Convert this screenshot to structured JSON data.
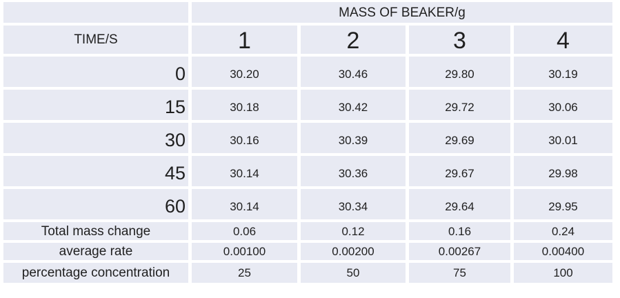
{
  "colors": {
    "cell_bg": "#e8eaf3",
    "gap": "#ffffff",
    "text": "#1f1f1f"
  },
  "chart_data": {
    "type": "table",
    "title": "MASS OF BEAKER/g",
    "row_axis_label": "TIME/S",
    "columns": [
      "1",
      "2",
      "3",
      "4"
    ],
    "time_rows": [
      {
        "time": "0",
        "masses": [
          "30.20",
          "30.46",
          "29.80",
          "30.19"
        ]
      },
      {
        "time": "15",
        "masses": [
          "30.18",
          "30.42",
          "29.72",
          "30.06"
        ]
      },
      {
        "time": "30",
        "masses": [
          "30.16",
          "30.39",
          "29.69",
          "30.01"
        ]
      },
      {
        "time": "45",
        "masses": [
          "30.14",
          "30.36",
          "29.67",
          "29.98"
        ]
      },
      {
        "time": "60",
        "masses": [
          "30.14",
          "30.34",
          "29.64",
          "29.95"
        ]
      }
    ],
    "summary_rows": [
      {
        "label": "Total mass change",
        "values": [
          "0.06",
          "0.12",
          "0.16",
          "0.24"
        ]
      },
      {
        "label": "average rate",
        "values": [
          "0.00100",
          "0.00200",
          "0.00267",
          "0.00400"
        ]
      },
      {
        "label": "percentage concentration",
        "values": [
          "25",
          "50",
          "75",
          "100"
        ]
      }
    ]
  }
}
